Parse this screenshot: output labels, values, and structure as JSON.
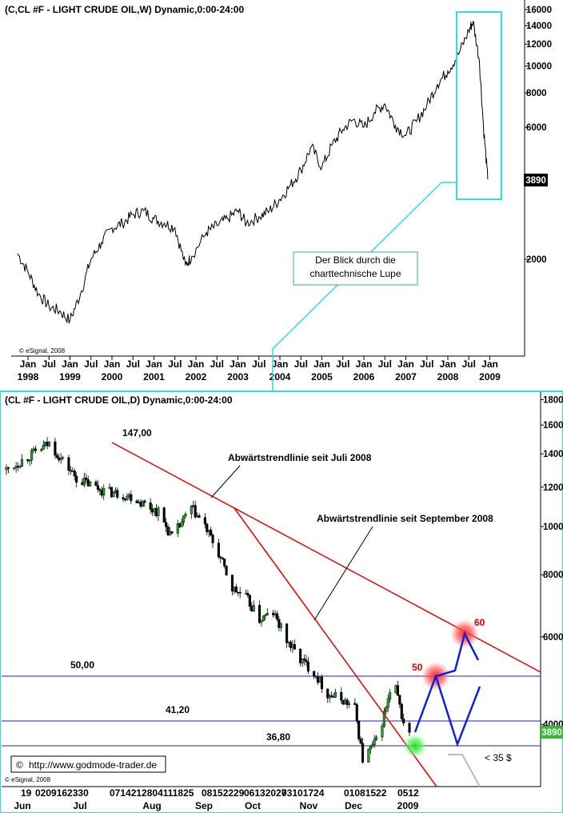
{
  "chart_data": [
    {
      "type": "line",
      "title": "(C,CL #F - LIGHT CRUDE OIL,W) Dynamic,0:00-24:00",
      "y_scale": "log",
      "ylim": [
        1000,
        16000
      ],
      "y_ticks": [
        "16000",
        "14000",
        "12000",
        "10000",
        "8000",
        "6000",
        "2000"
      ],
      "last_value_label": "3890",
      "x_tick_months": [
        "Jan",
        "Jul",
        "Jan",
        "Jul",
        "Jan",
        "Jul",
        "Jan",
        "Jul",
        "Jan",
        "Jul",
        "Jan",
        "Jul",
        "Jan",
        "Jul",
        "Jan",
        "Jul",
        "Jan",
        "Jul",
        "Jan",
        "Jul",
        "Jan",
        "Jul",
        "Jan"
      ],
      "x_tick_years": [
        "1998",
        "1999",
        "2000",
        "2001",
        "2002",
        "2003",
        "2004",
        "2005",
        "2006",
        "2007",
        "2008",
        "2009"
      ],
      "annotation": "Der Blick durch die charttechnische Lupe",
      "watermark": "© eSignal, 2008",
      "series": [
        {
          "x": [
            1997.75,
            1998.0,
            1998.25,
            1998.5,
            1998.75,
            1999.0,
            1999.25,
            1999.5,
            1999.75,
            2000.0,
            2000.25,
            2000.5,
            2000.75,
            2001.0,
            2001.25,
            2001.5,
            2001.75,
            2001.9,
            2002.25,
            2002.5,
            2002.75,
            2003.0,
            2003.2,
            2003.5,
            2003.75,
            2004.0,
            2004.25,
            2004.5,
            2004.75,
            2005.0,
            2005.25,
            2005.5,
            2005.75,
            2006.0,
            2006.25,
            2006.5,
            2006.75,
            2007.0,
            2007.25,
            2007.5,
            2007.75,
            2008.0,
            2008.25,
            2008.5,
            2008.6,
            2008.75,
            2008.85,
            2008.95
          ],
          "values": [
            2100,
            1800,
            1500,
            1350,
            1300,
            1200,
            1500,
            2000,
            2300,
            2600,
            2700,
            2900,
            3000,
            2800,
            2700,
            2600,
            1900,
            2050,
            2500,
            2650,
            2800,
            3000,
            2700,
            2850,
            3000,
            3300,
            3700,
            4200,
            5100,
            4300,
            5200,
            5900,
            6400,
            6000,
            6800,
            7300,
            6100,
            5600,
            6300,
            7200,
            8600,
            9600,
            11000,
            13400,
            14500,
            10500,
            6000,
            3890
          ]
        }
      ]
    },
    {
      "type": "line",
      "title": "(CL #F - LIGHT CRUDE OIL,D) Dynamic,0:00-24:00",
      "y_scale": "log",
      "ylim": [
        3000,
        18000
      ],
      "y_ticks": [
        "18000",
        "16000",
        "14000",
        "12000",
        "10000",
        "8000",
        "6000",
        "4000"
      ],
      "last_value_label": "3890",
      "x_tick_days": [
        "19",
        "0209162330",
        "0714212804111825",
        "08152229",
        "06132027",
        "03101724",
        "01081522",
        "0512"
      ],
      "x_tick_months": [
        "Jun",
        "Jul",
        "Aug",
        "Sep",
        "Oct",
        "Nov",
        "Dec",
        "2009"
      ],
      "horizontal_levels": [
        {
          "label": "50,00",
          "value": 5000
        },
        {
          "label": "41,20",
          "value": 4120
        },
        {
          "label": "36,80",
          "value": 3680
        }
      ],
      "trendlines": [
        {
          "label": "Abwärtstrendlinie seit Juli 2008",
          "start_label": "147,00"
        },
        {
          "label": "Abwärtstrendlinie seit September 2008"
        }
      ],
      "scenario_points": [
        {
          "label": "50",
          "value": 5000
        },
        {
          "label": "60",
          "value": 6000
        }
      ],
      "target_note": "< 35 $",
      "source_link": "http://www.godmode-trader.de",
      "watermark": "© eSignal, 2008",
      "series": [
        {
          "x": [
            "2008-06-19",
            "2008-06-30",
            "2008-07-11",
            "2008-07-25",
            "2008-08-08",
            "2008-08-22",
            "2008-09-05",
            "2008-09-12",
            "2008-09-22",
            "2008-09-29",
            "2008-10-06",
            "2008-10-13",
            "2008-10-20",
            "2008-10-27",
            "2008-11-03",
            "2008-11-10",
            "2008-11-17",
            "2008-11-24",
            "2008-12-01",
            "2008-12-08",
            "2008-12-15",
            "2008-12-19",
            "2008-12-26",
            "2009-01-02",
            "2009-01-05",
            "2009-01-09",
            "2009-01-12"
          ],
          "values": [
            13000,
            13800,
            14700,
            12500,
            11800,
            11500,
            10700,
            9500,
            10900,
            10000,
            8800,
            7500,
            7200,
            6500,
            6700,
            5900,
            5400,
            5100,
            4600,
            4500,
            4300,
            3400,
            3700,
            4600,
            4700,
            4000,
            3890
          ]
        }
      ]
    }
  ]
}
